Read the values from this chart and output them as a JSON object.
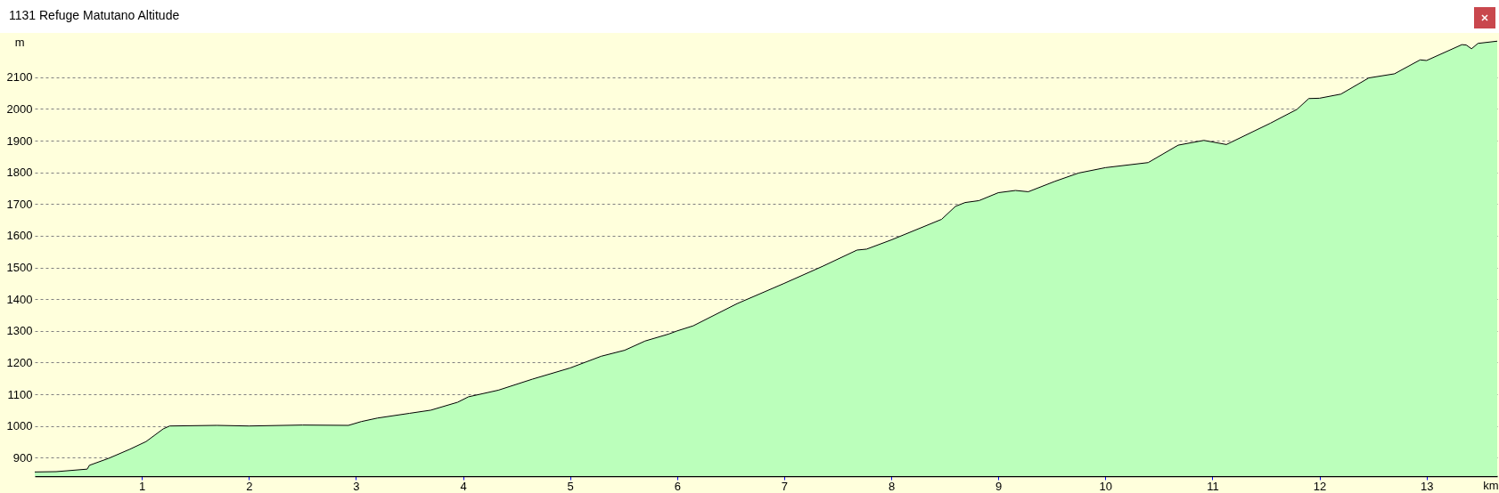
{
  "chart_data": {
    "type": "area",
    "title": "1131 Refuge Matutano Altitude",
    "xlabel": "km",
    "ylabel": "m",
    "xlim": [
      0,
      13.66
    ],
    "xticks": [
      1,
      2,
      3,
      4,
      5,
      6,
      7,
      8,
      9,
      10,
      11,
      12,
      13
    ],
    "ylim": [
      842,
      2240
    ],
    "yticks": [
      900,
      1000,
      1100,
      1200,
      1300,
      1400,
      1500,
      1600,
      1700,
      1800,
      1900,
      2000,
      2100
    ],
    "grid": "y",
    "series": [
      {
        "color": "#bbffbb",
        "x": [
          0,
          0.2,
          0.49,
          0.51,
          0.69,
          0.89,
          1.04,
          1.2,
          1.26,
          1.7,
          2.0,
          2.5,
          2.93,
          3.05,
          3.2,
          3.5,
          3.7,
          3.95,
          4.05,
          4.33,
          4.65,
          5.0,
          5.29,
          5.51,
          5.7,
          5.92,
          6.0,
          6.15,
          6.56,
          7.0,
          7.36,
          7.68,
          7.77,
          8.0,
          8.47,
          8.6,
          8.69,
          8.82,
          9.0,
          9.16,
          9.28,
          9.53,
          9.75,
          10.0,
          10.4,
          10.68,
          10.92,
          11.13,
          11.54,
          11.79,
          11.9,
          12.0,
          12.2,
          12.46,
          12.7,
          12.94,
          13.0,
          13.33,
          13.37,
          13.42,
          13.48,
          13.66
        ],
        "values": [
          855,
          856,
          864,
          876,
          898,
          927,
          951,
          991,
          1000,
          1002,
          1000,
          1003,
          1002,
          1014,
          1025,
          1040,
          1050,
          1075,
          1092,
          1113,
          1148,
          1183,
          1220,
          1239,
          1268,
          1290,
          1300,
          1316,
          1386,
          1450,
          1504,
          1555,
          1558,
          1587,
          1652,
          1693,
          1705,
          1711,
          1736,
          1743,
          1739,
          1772,
          1798,
          1815,
          1831,
          1886,
          1901,
          1888,
          1955,
          1999,
          2033,
          2034,
          2047,
          2098,
          2111,
          2155,
          2153,
          2203,
          2202,
          2190,
          2207,
          2214
        ]
      }
    ]
  }
}
